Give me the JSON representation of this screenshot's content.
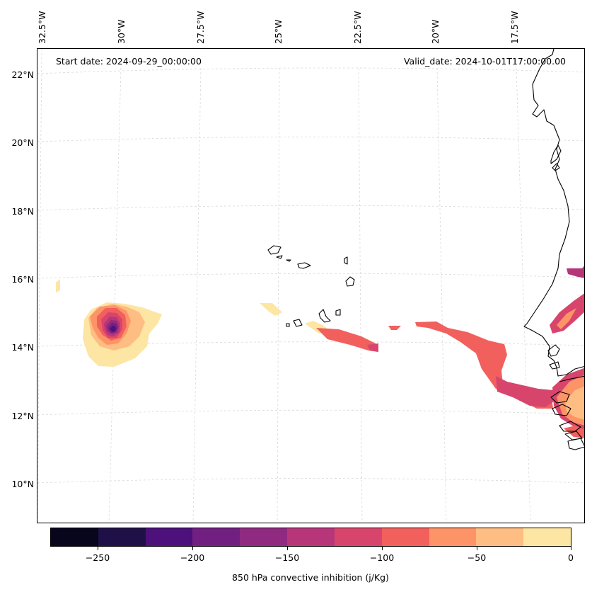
{
  "map": {
    "start_date": "Start date: 2024-09-29_00:00:00",
    "valid_date": "Valid_date: 2024-10-01T17:00:00.00",
    "lon_labels": [
      "32.5°W",
      "30°W",
      "27.5°W",
      "25°W",
      "22.5°W",
      "20°W",
      "17.5°W"
    ],
    "lat_labels": [
      "22°N",
      "20°N",
      "18°N",
      "16°N",
      "14°N",
      "12°N",
      "10°N"
    ],
    "gridlines": true,
    "variable": "850 hPa convective inhibition",
    "colors": {
      "coastline": "#000000",
      "gridline": "#d9d9d9"
    }
  },
  "colorbar": {
    "label": "850 hPa convective inhibition (j/Kg)",
    "tick_labels": [
      "−250",
      "−200",
      "−150",
      "−100",
      "−50",
      "0"
    ],
    "levels": [
      -275,
      -250,
      -225,
      -200,
      -175,
      -150,
      -125,
      -100,
      -75,
      -50,
      -25,
      0
    ],
    "colors": [
      "#07061c",
      "#1f1147",
      "#4c117a",
      "#711f81",
      "#902a81",
      "#b63679",
      "#d8456c",
      "#f1605d",
      "#fd9467",
      "#febd82",
      "#fde5a3"
    ]
  }
}
